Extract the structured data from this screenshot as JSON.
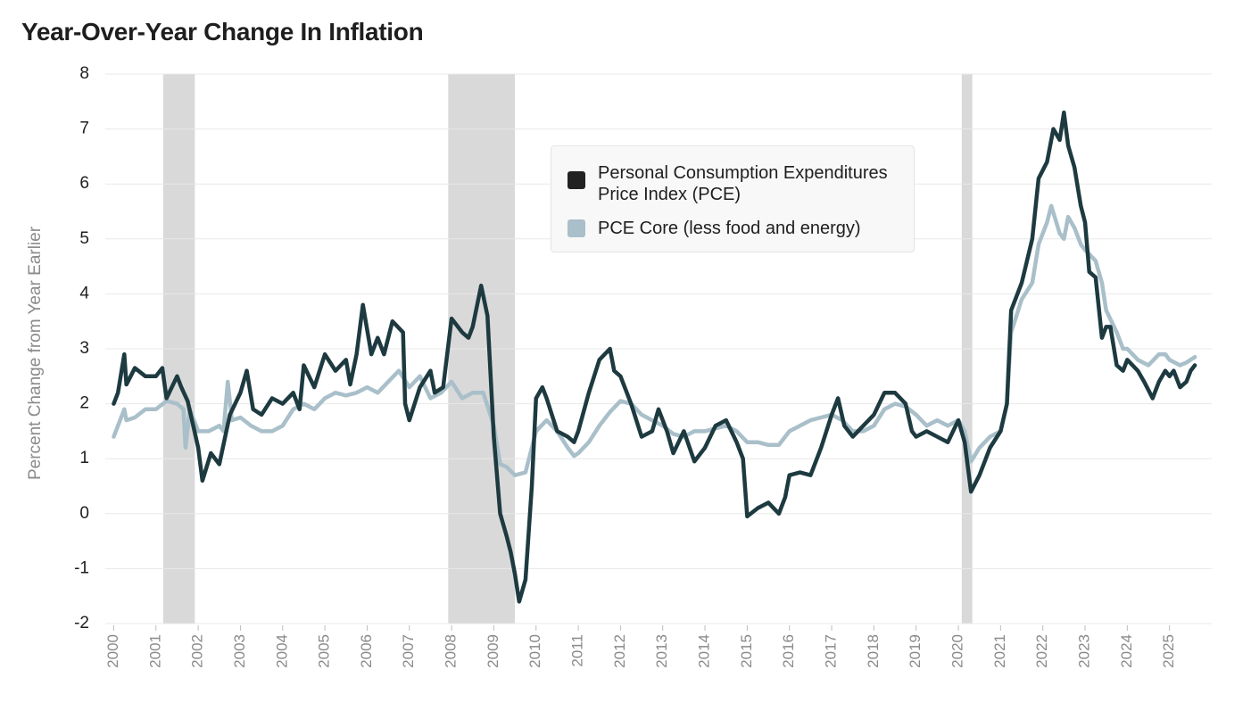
{
  "chart_data": {
    "type": "line",
    "title": "Year-Over-Year Change In Inflation",
    "ylabel": "Percent Change from Year Earlier",
    "xlim": [
      1999.8,
      2026
    ],
    "xticks": [
      2000,
      2001,
      2002,
      2003,
      2004,
      2005,
      2006,
      2007,
      2008,
      2009,
      2010,
      2011,
      2012,
      2013,
      2014,
      2015,
      2016,
      2017,
      2018,
      2019,
      2020,
      2021,
      2022,
      2023,
      2024,
      2025
    ],
    "ylim": [
      -2,
      8
    ],
    "yticks": [
      -2,
      -1,
      0,
      1,
      2,
      3,
      4,
      5,
      6,
      7,
      8
    ],
    "grid": true,
    "legend_position": "upper center",
    "shaded_color": "#d9d9d9",
    "shaded_periods": [
      [
        2001.17,
        2001.92
      ],
      [
        2007.92,
        2009.5
      ],
      [
        2020.08,
        2020.33
      ]
    ],
    "series": [
      {
        "name": "Personal Consumption Expenditures Price Index (PCE)",
        "color": "#1d3a40",
        "x": [
          2000.0,
          2000.1,
          2000.25,
          2000.3,
          2000.5,
          2000.75,
          2001.0,
          2001.15,
          2001.25,
          2001.5,
          2001.6,
          2001.75,
          2002.0,
          2002.1,
          2002.3,
          2002.5,
          2002.75,
          2003.0,
          2003.15,
          2003.3,
          2003.5,
          2003.75,
          2004.0,
          2004.25,
          2004.4,
          2004.5,
          2004.75,
          2005.0,
          2005.25,
          2005.5,
          2005.6,
          2005.75,
          2005.9,
          2006.1,
          2006.25,
          2006.4,
          2006.6,
          2006.85,
          2006.9,
          2007.0,
          2007.25,
          2007.5,
          2007.6,
          2007.8,
          2008.0,
          2008.25,
          2008.4,
          2008.5,
          2008.7,
          2008.85,
          2009.0,
          2009.15,
          2009.3,
          2009.4,
          2009.5,
          2009.6,
          2009.75,
          2009.9,
          2010.0,
          2010.15,
          2010.25,
          2010.5,
          2010.75,
          2010.9,
          2011.0,
          2011.25,
          2011.5,
          2011.75,
          2011.85,
          2012.0,
          2012.25,
          2012.5,
          2012.75,
          2012.9,
          2013.1,
          2013.25,
          2013.5,
          2013.75,
          2014.0,
          2014.25,
          2014.5,
          2014.75,
          2014.9,
          2015.0,
          2015.25,
          2015.5,
          2015.75,
          2015.9,
          2016.0,
          2016.25,
          2016.5,
          2016.75,
          2017.0,
          2017.15,
          2017.3,
          2017.5,
          2017.75,
          2018.0,
          2018.25,
          2018.5,
          2018.75,
          2018.9,
          2019.0,
          2019.25,
          2019.5,
          2019.75,
          2020.0,
          2020.15,
          2020.3,
          2020.5,
          2020.75,
          2021.0,
          2021.15,
          2021.25,
          2021.5,
          2021.75,
          2021.9,
          2022.1,
          2022.25,
          2022.4,
          2022.5,
          2022.6,
          2022.75,
          2022.9,
          2023.0,
          2023.1,
          2023.25,
          2023.4,
          2023.5,
          2023.6,
          2023.75,
          2023.9,
          2024.0,
          2024.25,
          2024.4,
          2024.6,
          2024.75,
          2024.9,
          2025.0,
          2025.1,
          2025.25,
          2025.4,
          2025.5,
          2025.6
        ],
        "values": [
          2.0,
          2.2,
          2.9,
          2.35,
          2.65,
          2.5,
          2.5,
          2.65,
          2.1,
          2.5,
          2.3,
          2.05,
          1.2,
          0.6,
          1.1,
          0.9,
          1.8,
          2.2,
          2.6,
          1.9,
          1.8,
          2.1,
          2.0,
          2.2,
          1.9,
          2.7,
          2.3,
          2.9,
          2.6,
          2.8,
          2.35,
          2.9,
          3.8,
          2.9,
          3.2,
          2.9,
          3.5,
          3.3,
          2.0,
          1.7,
          2.3,
          2.6,
          2.2,
          2.3,
          3.55,
          3.3,
          3.2,
          3.4,
          4.15,
          3.6,
          1.4,
          0.0,
          -0.4,
          -0.7,
          -1.1,
          -1.6,
          -1.2,
          0.5,
          2.1,
          2.3,
          2.1,
          1.5,
          1.4,
          1.3,
          1.5,
          2.2,
          2.8,
          3.0,
          2.6,
          2.5,
          2.0,
          1.4,
          1.5,
          1.9,
          1.5,
          1.1,
          1.5,
          0.95,
          1.2,
          1.6,
          1.7,
          1.3,
          1.0,
          -0.05,
          0.1,
          0.2,
          0.0,
          0.3,
          0.7,
          0.75,
          0.7,
          1.2,
          1.8,
          2.1,
          1.6,
          1.4,
          1.6,
          1.8,
          2.2,
          2.2,
          2.0,
          1.5,
          1.4,
          1.5,
          1.4,
          1.3,
          1.7,
          1.3,
          0.4,
          0.7,
          1.2,
          1.5,
          2.0,
          3.7,
          4.2,
          5.0,
          6.1,
          6.4,
          7.0,
          6.8,
          7.3,
          6.7,
          6.3,
          5.6,
          5.3,
          4.4,
          4.3,
          3.2,
          3.4,
          3.4,
          2.7,
          2.6,
          2.8,
          2.6,
          2.4,
          2.1,
          2.4,
          2.6,
          2.5,
          2.6,
          2.3,
          2.4,
          2.6,
          2.7
        ]
      },
      {
        "name": "PCE Core (less food and energy)",
        "color": "#a9bfc9",
        "x": [
          2000.0,
          2000.25,
          2000.3,
          2000.5,
          2000.75,
          2001.0,
          2001.25,
          2001.5,
          2001.65,
          2001.7,
          2001.8,
          2002.0,
          2002.25,
          2002.5,
          2002.6,
          2002.7,
          2002.8,
          2003.0,
          2003.25,
          2003.5,
          2003.75,
          2004.0,
          2004.25,
          2004.5,
          2004.75,
          2005.0,
          2005.25,
          2005.5,
          2005.75,
          2006.0,
          2006.25,
          2006.5,
          2006.75,
          2007.0,
          2007.25,
          2007.5,
          2007.75,
          2008.0,
          2008.25,
          2008.5,
          2008.75,
          2009.0,
          2009.15,
          2009.3,
          2009.5,
          2009.75,
          2010.0,
          2010.25,
          2010.5,
          2010.75,
          2010.9,
          2011.0,
          2011.25,
          2011.5,
          2011.75,
          2012.0,
          2012.25,
          2012.5,
          2012.75,
          2013.0,
          2013.25,
          2013.5,
          2013.75,
          2014.0,
          2014.25,
          2014.5,
          2014.75,
          2015.0,
          2015.25,
          2015.5,
          2015.75,
          2016.0,
          2016.25,
          2016.5,
          2016.75,
          2017.0,
          2017.25,
          2017.5,
          2017.75,
          2018.0,
          2018.25,
          2018.5,
          2018.75,
          2019.0,
          2019.25,
          2019.5,
          2019.75,
          2020.0,
          2020.15,
          2020.3,
          2020.5,
          2020.75,
          2021.0,
          2021.15,
          2021.25,
          2021.5,
          2021.75,
          2021.9,
          2022.1,
          2022.2,
          2022.4,
          2022.5,
          2022.6,
          2022.75,
          2022.9,
          2023.0,
          2023.25,
          2023.4,
          2023.5,
          2023.75,
          2023.9,
          2024.0,
          2024.25,
          2024.5,
          2024.75,
          2024.9,
          2025.0,
          2025.25,
          2025.4,
          2025.6
        ],
        "values": [
          1.4,
          1.9,
          1.7,
          1.75,
          1.9,
          1.9,
          2.05,
          2.0,
          1.9,
          1.2,
          1.9,
          1.5,
          1.5,
          1.6,
          1.5,
          2.4,
          1.7,
          1.75,
          1.6,
          1.5,
          1.5,
          1.6,
          1.9,
          2.0,
          1.9,
          2.1,
          2.2,
          2.15,
          2.2,
          2.3,
          2.2,
          2.4,
          2.6,
          2.3,
          2.5,
          2.1,
          2.2,
          2.4,
          2.1,
          2.2,
          2.2,
          1.6,
          0.9,
          0.85,
          0.7,
          0.75,
          1.5,
          1.7,
          1.5,
          1.2,
          1.05,
          1.1,
          1.3,
          1.6,
          1.85,
          2.05,
          2.0,
          1.8,
          1.7,
          1.6,
          1.45,
          1.4,
          1.5,
          1.5,
          1.55,
          1.6,
          1.5,
          1.3,
          1.3,
          1.25,
          1.25,
          1.5,
          1.6,
          1.7,
          1.75,
          1.8,
          1.7,
          1.5,
          1.5,
          1.6,
          1.9,
          2.0,
          1.95,
          1.8,
          1.6,
          1.7,
          1.6,
          1.7,
          1.5,
          0.95,
          1.2,
          1.4,
          1.5,
          2.0,
          3.3,
          3.9,
          4.2,
          4.9,
          5.3,
          5.6,
          5.1,
          5.0,
          5.4,
          5.2,
          4.9,
          4.8,
          4.6,
          4.2,
          3.7,
          3.3,
          3.0,
          3.0,
          2.8,
          2.7,
          2.9,
          2.9,
          2.8,
          2.7,
          2.75,
          2.85
        ]
      }
    ]
  }
}
